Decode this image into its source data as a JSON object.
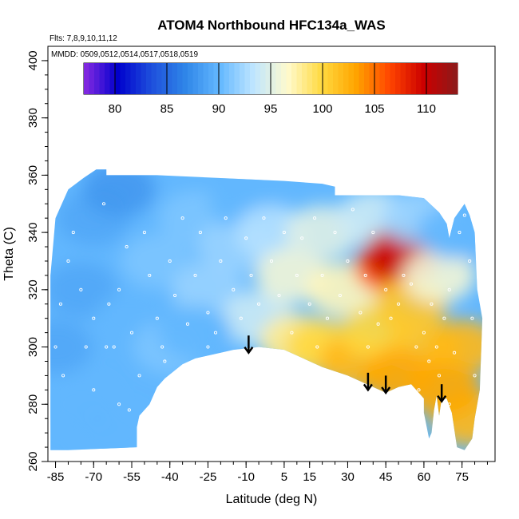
{
  "chart_data": {
    "type": "heatmap",
    "title": "ATOM4 Northbound HFC134a_WAS",
    "subtitle_flights": "Flts: 7,8,9,10,11,12",
    "subtitle_dates": "MMDD: 0509,0512,0514,0517,0518,0519",
    "xlabel": "Latitude (deg N)",
    "ylabel": "Theta (C)",
    "xlim": [
      -88,
      88
    ],
    "ylim": [
      260,
      405
    ],
    "x_ticks": [
      -85,
      -70,
      -55,
      -40,
      -25,
      -10,
      5,
      15,
      30,
      45,
      60,
      75
    ],
    "x_tick_labels": [
      "-85",
      "-70",
      "-55",
      "-40",
      "-25",
      "-10",
      "5",
      "15",
      "30",
      "45",
      "60",
      "75"
    ],
    "y_ticks": [
      260,
      280,
      300,
      320,
      340,
      360,
      380,
      400
    ],
    "y_tick_labels": [
      "260",
      "280",
      "300",
      "320",
      "340",
      "360",
      "380",
      "400"
    ],
    "colorbar": {
      "range": [
        77,
        113
      ],
      "ticks": [
        80,
        85,
        90,
        95,
        100,
        105,
        110
      ],
      "tick_labels": [
        "80",
        "85",
        "90",
        "95",
        "100",
        "105",
        "110"
      ],
      "colors": [
        "#8a2be2",
        "#0000cd",
        "#1e50dc",
        "#2f86e8",
        "#63b8ff",
        "#bfe6ff",
        "#fffacd",
        "#ffd940",
        "#ffa500",
        "#ff4500",
        "#cc0000",
        "#8b1a1a"
      ]
    },
    "vertical_arrows": [
      {
        "lat": -9,
        "theta_top": 304,
        "theta_bottom": 298
      },
      {
        "lat": 38,
        "theta_top": 291,
        "theta_bottom": 285
      },
      {
        "lat": 45,
        "theta_top": 290,
        "theta_bottom": 284
      },
      {
        "lat": 67,
        "theta_top": 287,
        "theta_bottom": 281
      }
    ],
    "coverage_outline": [
      [
        -87,
        264
      ],
      [
        -87,
        325
      ],
      [
        -85,
        345
      ],
      [
        -80,
        355
      ],
      [
        -74,
        359
      ],
      [
        -69,
        362
      ],
      [
        -65,
        362
      ],
      [
        -65,
        360
      ],
      [
        -45,
        360
      ],
      [
        -20,
        359
      ],
      [
        5,
        358
      ],
      [
        20,
        357
      ],
      [
        25,
        356
      ],
      [
        25,
        353
      ],
      [
        50,
        353
      ],
      [
        60,
        352
      ],
      [
        66,
        347
      ],
      [
        69,
        343
      ],
      [
        70,
        338
      ],
      [
        72,
        345
      ],
      [
        76,
        350
      ],
      [
        78,
        346
      ],
      [
        80,
        340
      ],
      [
        81,
        320
      ],
      [
        83,
        310
      ],
      [
        82,
        285
      ],
      [
        80,
        275
      ],
      [
        79,
        268
      ],
      [
        76,
        264
      ],
      [
        73,
        265
      ],
      [
        71,
        277
      ],
      [
        69,
        282
      ],
      [
        67,
        282
      ],
      [
        66,
        276
      ],
      [
        65,
        283
      ],
      [
        64,
        278
      ],
      [
        63,
        270
      ],
      [
        62,
        268
      ],
      [
        60,
        277
      ],
      [
        60,
        282
      ],
      [
        55,
        287
      ],
      [
        50,
        286
      ],
      [
        45,
        284
      ],
      [
        40,
        286
      ],
      [
        30,
        290
      ],
      [
        20,
        293
      ],
      [
        10,
        297
      ],
      [
        5,
        299
      ],
      [
        -5,
        300
      ],
      [
        -15,
        299
      ],
      [
        -20,
        298
      ],
      [
        -30,
        296
      ],
      [
        -35,
        294
      ],
      [
        -42,
        289
      ],
      [
        -45,
        286
      ],
      [
        -48,
        280
      ],
      [
        -52,
        276
      ],
      [
        -53,
        272
      ],
      [
        -53,
        265
      ],
      [
        -80,
        264
      ]
    ],
    "fields": [
      {
        "lat": -85,
        "theta": 300,
        "value": 89
      },
      {
        "lat": -75,
        "theta": 280,
        "value": 90
      },
      {
        "lat": -75,
        "theta": 320,
        "value": 89
      },
      {
        "lat": -70,
        "theta": 345,
        "value": 89
      },
      {
        "lat": -60,
        "theta": 355,
        "value": 88
      },
      {
        "lat": -55,
        "theta": 310,
        "value": 90
      },
      {
        "lat": -45,
        "theta": 330,
        "value": 91
      },
      {
        "lat": -40,
        "theta": 300,
        "value": 91
      },
      {
        "lat": -30,
        "theta": 345,
        "value": 91
      },
      {
        "lat": -25,
        "theta": 320,
        "value": 92
      },
      {
        "lat": -15,
        "theta": 335,
        "value": 92
      },
      {
        "lat": -10,
        "theta": 350,
        "value": 90
      },
      {
        "lat": -5,
        "theta": 310,
        "value": 94
      },
      {
        "lat": 0,
        "theta": 340,
        "value": 93
      },
      {
        "lat": 8,
        "theta": 325,
        "value": 96
      },
      {
        "lat": 10,
        "theta": 302,
        "value": 98
      },
      {
        "lat": 20,
        "theta": 340,
        "value": 95
      },
      {
        "lat": 20,
        "theta": 300,
        "value": 100
      },
      {
        "lat": 28,
        "theta": 320,
        "value": 97
      },
      {
        "lat": 33,
        "theta": 295,
        "value": 102
      },
      {
        "lat": 40,
        "theta": 345,
        "value": 94
      },
      {
        "lat": 42,
        "theta": 305,
        "value": 100
      },
      {
        "lat": 47,
        "theta": 328,
        "value": 106
      },
      {
        "lat": 51,
        "theta": 332,
        "value": 110
      },
      {
        "lat": 55,
        "theta": 315,
        "value": 101
      },
      {
        "lat": 58,
        "theta": 345,
        "value": 92
      },
      {
        "lat": 60,
        "theta": 300,
        "value": 101
      },
      {
        "lat": 66,
        "theta": 325,
        "value": 96
      },
      {
        "lat": 72,
        "theta": 340,
        "value": 90
      },
      {
        "lat": 75,
        "theta": 300,
        "value": 102
      },
      {
        "lat": 78,
        "theta": 275,
        "value": 102
      },
      {
        "lat": 68,
        "theta": 285,
        "value": 103
      },
      {
        "lat": 50,
        "theta": 290,
        "value": 103
      },
      {
        "lat": -62,
        "theta": 270,
        "value": 90
      },
      {
        "lat": -30,
        "theta": 305,
        "value": 90
      }
    ],
    "samples": [
      [
        -85,
        300
      ],
      [
        -82,
        290
      ],
      [
        -80,
        330
      ],
      [
        -78,
        340
      ],
      [
        -75,
        320
      ],
      [
        -73,
        300
      ],
      [
        -70,
        285
      ],
      [
        -66,
        350
      ],
      [
        -64,
        315
      ],
      [
        -62,
        300
      ],
      [
        -60,
        320
      ],
      [
        -57,
        335
      ],
      [
        -55,
        305
      ],
      [
        -52,
        290
      ],
      [
        -50,
        340
      ],
      [
        -48,
        325
      ],
      [
        -45,
        310
      ],
      [
        -43,
        300
      ],
      [
        -40,
        330
      ],
      [
        -38,
        318
      ],
      [
        -35,
        345
      ],
      [
        -33,
        308
      ],
      [
        -30,
        325
      ],
      [
        -28,
        340
      ],
      [
        -25,
        312
      ],
      [
        -22,
        305
      ],
      [
        -20,
        330
      ],
      [
        -18,
        345
      ],
      [
        -15,
        320
      ],
      [
        -12,
        310
      ],
      [
        -10,
        338
      ],
      [
        -8,
        325
      ],
      [
        -5,
        315
      ],
      [
        -3,
        345
      ],
      [
        0,
        330
      ],
      [
        3,
        318
      ],
      [
        5,
        340
      ],
      [
        8,
        305
      ],
      [
        10,
        325
      ],
      [
        12,
        338
      ],
      [
        15,
        315
      ],
      [
        17,
        345
      ],
      [
        20,
        325
      ],
      [
        22,
        310
      ],
      [
        25,
        340
      ],
      [
        27,
        318
      ],
      [
        30,
        330
      ],
      [
        32,
        348
      ],
      [
        35,
        312
      ],
      [
        37,
        325
      ],
      [
        40,
        340
      ],
      [
        42,
        308
      ],
      [
        45,
        320
      ],
      [
        47,
        310
      ],
      [
        50,
        315
      ],
      [
        52,
        325
      ],
      [
        55,
        322
      ],
      [
        57,
        300
      ],
      [
        60,
        305
      ],
      [
        62,
        295
      ],
      [
        63,
        315
      ],
      [
        65,
        300
      ],
      [
        66,
        290
      ],
      [
        68,
        310
      ],
      [
        70,
        320
      ],
      [
        72,
        298
      ],
      [
        74,
        340
      ],
      [
        75,
        350
      ],
      [
        76,
        346
      ],
      [
        78,
        330
      ],
      [
        79,
        310
      ],
      [
        80,
        290
      ],
      [
        -60,
        280
      ],
      [
        -40,
        285
      ],
      [
        -65,
        300
      ],
      [
        -70,
        310
      ],
      [
        -83,
        315
      ],
      [
        -56,
        278
      ],
      [
        -42,
        295
      ],
      [
        -25,
        300
      ],
      [
        18,
        300
      ],
      [
        38,
        300
      ],
      [
        58,
        285
      ],
      [
        70,
        280
      ]
    ]
  }
}
